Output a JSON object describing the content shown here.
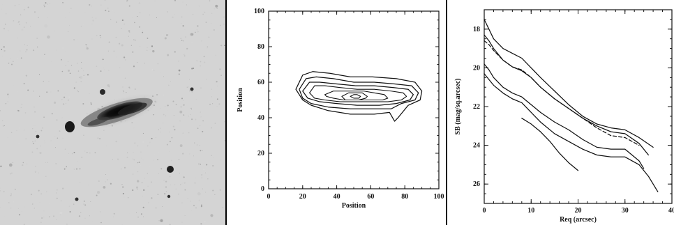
{
  "figure": {
    "colors": {
      "photo_background": "#d4d4d4",
      "galaxy_dark": "#111111",
      "line": "#111111"
    }
  },
  "panels": {
    "image": {
      "icon": "galaxy-image"
    },
    "contour": {
      "xlabel": "Position",
      "ylabel": "Position",
      "x_ticks": [
        "0",
        "20",
        "40",
        "60",
        "80",
        "100"
      ],
      "y_ticks": [
        "0",
        "20",
        "40",
        "60",
        "80",
        "100"
      ]
    },
    "profile": {
      "xlabel": "Req (arcsec)",
      "ylabel": "SB (mag/sq.arcsec)",
      "x_ticks": [
        "0",
        "10",
        "20",
        "30",
        "40"
      ],
      "y_ticks": [
        "18",
        "20",
        "22",
        "24",
        "26"
      ]
    }
  },
  "chart_data": [
    {
      "type": "line",
      "chart": "contour-map",
      "xlabel": "Position",
      "ylabel": "Position",
      "xlim": [
        0,
        100
      ],
      "ylim": [
        0,
        100
      ],
      "grid": false,
      "series": [
        {
          "x": [
            16,
            20,
            26,
            36,
            48,
            61,
            75,
            86,
            90,
            89,
            82,
            76,
            74,
            71,
            62,
            48,
            35,
            25,
            20,
            16
          ],
          "y": [
            56,
            64,
            66,
            65,
            63,
            63,
            62,
            60,
            55,
            50,
            47,
            40,
            38,
            43,
            42,
            42,
            44,
            47,
            50,
            56
          ]
        },
        {
          "x": [
            18,
            22,
            28,
            38,
            50,
            62,
            74,
            84,
            88,
            86,
            78,
            72,
            61,
            48,
            35,
            25,
            20,
            18
          ],
          "y": [
            56,
            62,
            63,
            62,
            60,
            60,
            59,
            58,
            54,
            50,
            48,
            45,
            45,
            45,
            46,
            48,
            51,
            56
          ]
        },
        {
          "x": [
            20,
            24,
            30,
            40,
            51,
            62,
            73,
            82,
            85,
            83,
            75,
            65,
            52,
            40,
            30,
            23,
            20
          ],
          "y": [
            55,
            60,
            60,
            59,
            58,
            58,
            57,
            56,
            53,
            50,
            48,
            47,
            47,
            48,
            49,
            51,
            55
          ]
        },
        {
          "x": [
            24,
            27,
            33,
            42,
            52,
            62,
            72,
            79,
            81,
            78,
            70,
            61,
            52,
            42,
            33,
            27,
            24
          ],
          "y": [
            54,
            58,
            58,
            57,
            56,
            56,
            55,
            54,
            52,
            50,
            49,
            49,
            49,
            49,
            50,
            51,
            54
          ]
        },
        {
          "x": [
            33,
            38,
            44,
            50,
            56,
            62,
            68,
            70,
            67,
            60,
            52,
            44,
            38,
            34,
            33
          ],
          "y": [
            53,
            55,
            55,
            55,
            55,
            54,
            53,
            51,
            50,
            50,
            50,
            50,
            51,
            52,
            53
          ]
        },
        {
          "x": [
            43,
            47,
            51,
            55,
            58,
            57,
            53,
            49,
            45,
            43
          ],
          "y": [
            52,
            54,
            54,
            54,
            52,
            51,
            50,
            50,
            50,
            52
          ]
        },
        {
          "x": [
            48,
            50,
            52,
            54,
            53,
            50,
            48
          ],
          "y": [
            52,
            53,
            53,
            52,
            51,
            51,
            52
          ]
        }
      ]
    },
    {
      "type": "line",
      "chart": "surface-brightness-profile",
      "xlabel": "Req (arcsec)",
      "ylabel": "SB (mag/sq.arcsec)",
      "xlim": [
        0,
        40
      ],
      "ylim": [
        27,
        17
      ],
      "grid": false,
      "series": [
        {
          "line_style": "solid",
          "x": [
            0,
            1,
            2,
            4,
            6,
            8,
            10,
            12,
            15,
            18,
            21,
            24,
            27,
            30,
            33,
            36
          ],
          "y": [
            17.5,
            18.0,
            18.5,
            19.0,
            19.25,
            19.5,
            20.0,
            20.5,
            21.2,
            21.9,
            22.5,
            22.9,
            23.1,
            23.2,
            23.6,
            24.1
          ]
        },
        {
          "line_style": "solid",
          "x": [
            0,
            1,
            2,
            4,
            6,
            8,
            10,
            12,
            15,
            18,
            21,
            24,
            27,
            30,
            33,
            35
          ],
          "y": [
            18.3,
            18.6,
            19.0,
            19.6,
            19.95,
            20.15,
            20.5,
            21.0,
            21.6,
            22.1,
            22.6,
            23.0,
            23.3,
            23.4,
            23.9,
            24.5
          ]
        },
        {
          "line_style": "dashed",
          "x": [
            0,
            1,
            2,
            4,
            6,
            8,
            10,
            12,
            15,
            18,
            21,
            24,
            27,
            30,
            33
          ],
          "y": [
            18.6,
            18.8,
            19.1,
            19.6,
            19.95,
            20.1,
            20.5,
            21.0,
            21.6,
            22.1,
            22.6,
            23.1,
            23.5,
            23.6,
            24.0
          ]
        },
        {
          "line_style": "solid",
          "x": [
            0,
            1,
            2,
            4,
            6,
            8,
            10,
            12,
            15,
            18,
            21,
            24,
            27,
            30,
            33,
            34
          ],
          "y": [
            19.8,
            20.1,
            20.5,
            21.0,
            21.3,
            21.5,
            21.9,
            22.3,
            22.8,
            23.2,
            23.7,
            24.1,
            24.2,
            24.2,
            24.8,
            25.2
          ]
        },
        {
          "line_style": "solid",
          "x": [
            0,
            1,
            2,
            4,
            6,
            8,
            10,
            12,
            15,
            18,
            21,
            24,
            27,
            30,
            33,
            35,
            37
          ],
          "y": [
            20.3,
            20.6,
            20.9,
            21.3,
            21.6,
            21.8,
            22.3,
            22.8,
            23.4,
            23.8,
            24.2,
            24.5,
            24.6,
            24.6,
            25.0,
            25.6,
            26.4
          ]
        },
        {
          "line_style": "solid",
          "x": [
            8,
            10,
            12,
            14,
            16,
            18,
            20
          ],
          "y": [
            22.6,
            22.9,
            23.3,
            23.8,
            24.4,
            24.9,
            25.3
          ]
        }
      ]
    }
  ]
}
